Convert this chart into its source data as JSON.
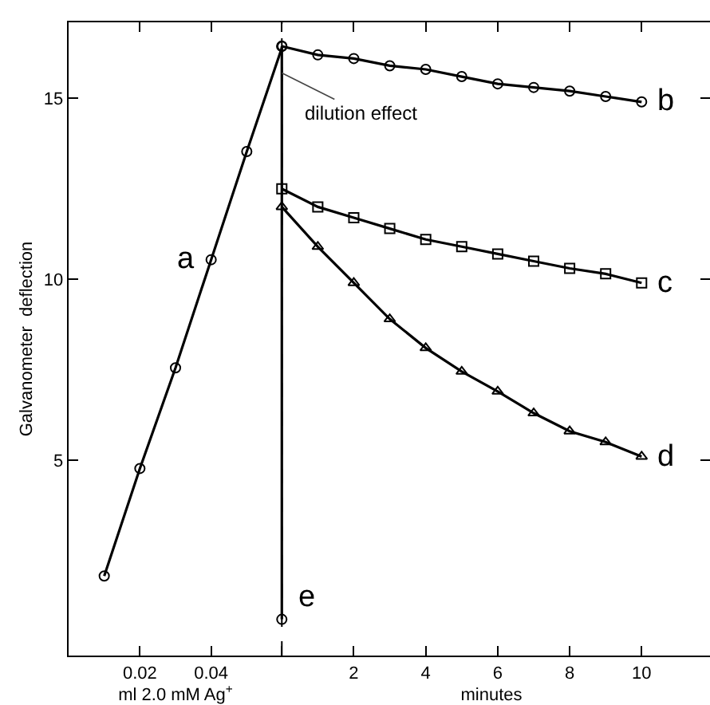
{
  "chart_data": [
    {
      "type": "line",
      "xlabel": "ml 2.0 mM Ag$^{+}$",
      "ylabel": "Galvanometer  deflection",
      "x": [
        0.01,
        0.02,
        0.03,
        0.04,
        0.05,
        0.06
      ],
      "xlim": [
        0,
        0.06
      ],
      "xticks": [
        0.02,
        0.04
      ],
      "ylim": [
        -0.4,
        17.1
      ],
      "yticks": [
        5,
        10,
        15
      ],
      "grid": false,
      "legend": "left",
      "series": [
        {
          "name": "a",
          "color": "#000000",
          "marker": "circle",
          "values": [
            1.8,
            4.77,
            7.55,
            10.54,
            13.53,
            16.44
          ]
        }
      ]
    },
    {
      "type": "line",
      "xlabel": "minutes",
      "x": [
        0,
        1,
        2,
        3,
        4,
        5,
        6,
        7,
        8,
        9,
        10
      ],
      "xlim": [
        -0.25,
        11.9
      ],
      "xticks": [
        {
          "value": 0,
          "label": null
        },
        2,
        4,
        6,
        8,
        10
      ],
      "ylim": [
        -0.4,
        17.1
      ],
      "yticks": [
        {
          "value": 5,
          "label": null
        },
        {
          "value": 10,
          "label": null
        },
        {
          "value": 15,
          "label": null
        }
      ],
      "tick_labels": "x",
      "grid": false,
      "legend": "right",
      "ref_lines": [
        {
          "axis": "x",
          "value": 0,
          "line_style": "dashed",
          "color": "#000000"
        }
      ],
      "annotations": [
        {
          "text": "dilution effect",
          "x": 0,
          "y": 15.7
        }
      ],
      "series": [
        {
          "name": "b",
          "color": "#000000",
          "marker": "circle",
          "values": [
            16.44,
            16.2,
            16.1,
            15.9,
            15.8,
            15.6,
            15.4,
            15.3,
            15.2,
            15.05,
            14.9
          ]
        },
        {
          "name": "c",
          "color": "#000000",
          "marker": "square",
          "values": [
            12.5,
            12.0,
            11.7,
            11.4,
            11.1,
            10.9,
            10.7,
            10.5,
            10.3,
            10.15,
            9.9
          ]
        },
        {
          "name": "d",
          "color": "#000000",
          "marker": "triangle",
          "values": [
            12.0,
            10.9,
            9.9,
            8.9,
            8.1,
            7.45,
            6.9,
            6.3,
            5.8,
            5.5,
            5.1
          ]
        },
        {
          "name": "e",
          "color": "#000000",
          "marker": "circle",
          "x": [
            0,
            0
          ],
          "values": [
            16.44,
            0.6
          ]
        }
      ]
    }
  ]
}
